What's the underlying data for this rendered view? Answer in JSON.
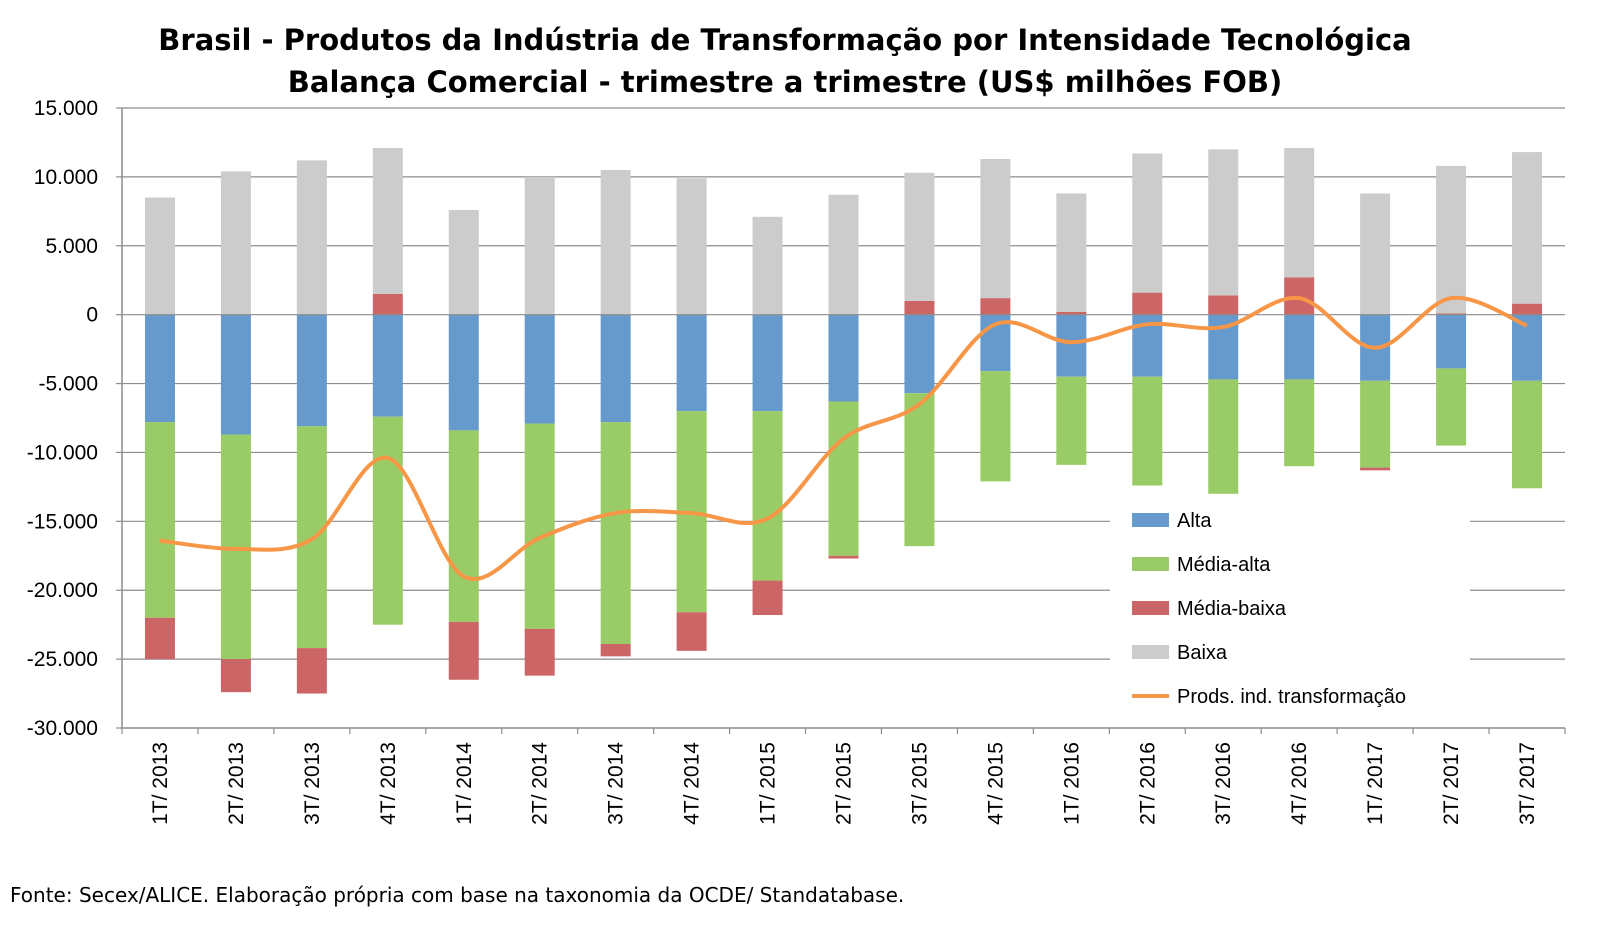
{
  "source_note": "Fonte: Secex/ALICE. Elaboração própria com base na taxonomia da OCDE/ Standatabase.",
  "chart_data": {
    "type": "bar",
    "stacked": true,
    "title": "Brasil - Produtos da Indústria de Transformação por Intensidade Tecnológica",
    "subtitle": "Balança Comercial - trimestre a trimestre (US$ milhões FOB)",
    "xlabel": "",
    "ylabel": "",
    "ylim": [
      -30000,
      15000
    ],
    "yticks": [
      15000,
      10000,
      5000,
      0,
      -5000,
      -10000,
      -15000,
      -20000,
      -25000,
      -30000
    ],
    "ytick_labels": [
      "15.000",
      "10.000",
      "5.000",
      "0",
      "-5.000",
      "-10.000",
      "-15.000",
      "-20.000",
      "-25.000",
      "-30.000"
    ],
    "grid": true,
    "legend_position": "right",
    "categories": [
      "1T/ 2013",
      "2T/ 2013",
      "3T/ 2013",
      "4T/ 2013",
      "1T/ 2014",
      "2T/ 2014",
      "3T/ 2014",
      "4T/ 2014",
      "1T/ 2015",
      "2T/ 2015",
      "3T/ 2015",
      "4T/ 2015",
      "1T/ 2016",
      "2T/ 2016",
      "3T/ 2016",
      "4T/ 2016",
      "1T/ 2017",
      "2T/ 2017",
      "3T/ 2017"
    ],
    "series": [
      {
        "name": "Alta",
        "type": "bar",
        "color": "#6699cc",
        "values": [
          -7800,
          -8700,
          -8100,
          -7400,
          -8400,
          -7900,
          -7800,
          -7000,
          -7000,
          -6300,
          -5700,
          -4100,
          -4500,
          -4500,
          -4700,
          -4700,
          -4800,
          -3900,
          -4800
        ]
      },
      {
        "name": "Média-alta",
        "type": "bar",
        "color": "#99cc66",
        "values": [
          -14200,
          -16300,
          -16100,
          -15100,
          -13900,
          -14900,
          -16100,
          -14600,
          -12300,
          -11200,
          -11100,
          -8000,
          -6400,
          -7900,
          -8300,
          -6300,
          -6300,
          -5600,
          -7800
        ]
      },
      {
        "name": "Média-baixa",
        "type": "bar",
        "color": "#cc6666",
        "values": [
          -3000,
          -2400,
          -3300,
          1500,
          -4200,
          -3400,
          -900,
          -2800,
          -2500,
          -200,
          1000,
          1200,
          200,
          1600,
          1400,
          2700,
          -200,
          100,
          800
        ]
      },
      {
        "name": "Baixa",
        "type": "bar",
        "color": "#cccccc",
        "values": [
          8500,
          10400,
          11200,
          10600,
          7600,
          10000,
          10500,
          9900,
          7100,
          8700,
          9300,
          10100,
          8600,
          10100,
          10600,
          9400,
          8800,
          10700,
          11000
        ]
      },
      {
        "name": "Prods. ind. transformação",
        "type": "line",
        "color": "#f79646",
        "values": [
          -16400,
          -17000,
          -16300,
          -10400,
          -19000,
          -16200,
          -14400,
          -14400,
          -14800,
          -9000,
          -6500,
          -700,
          -2000,
          -700,
          -900,
          1200,
          -2400,
          1200,
          -800
        ]
      }
    ]
  }
}
